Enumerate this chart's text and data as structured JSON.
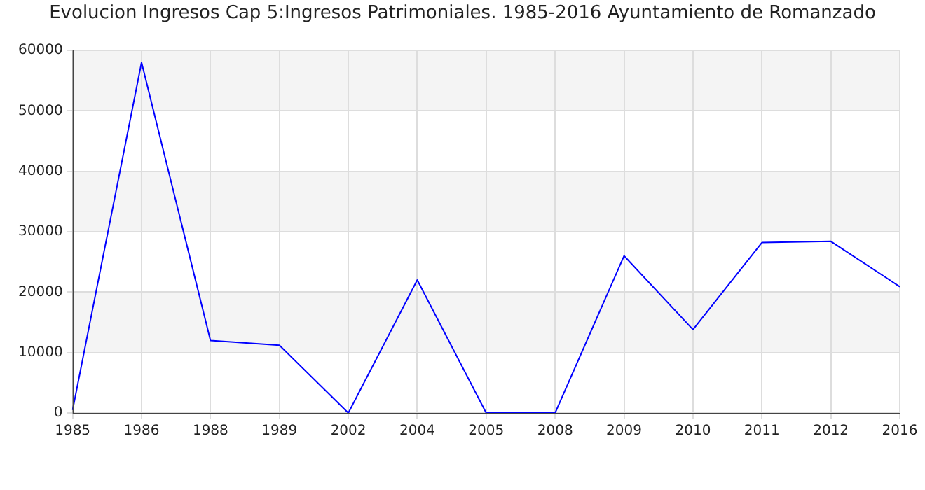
{
  "chart_data": {
    "type": "line",
    "title": "Evolucion Ingresos Cap 5:Ingresos Patrimoniales. 1985-2016 Ayuntamiento de Romanzado",
    "categories": [
      "1985",
      "1986",
      "1988",
      "1989",
      "2002",
      "2004",
      "2005",
      "2008",
      "2009",
      "2010",
      "2011",
      "2012",
      "2016"
    ],
    "series": [
      {
        "color": "#0000ff",
        "values": [
          500,
          58000,
          12000,
          11200,
          0,
          22000,
          0,
          0,
          26000,
          13800,
          28200,
          28400,
          20900
        ]
      }
    ],
    "ylim": [
      0,
      60000
    ],
    "yticks": [
      0,
      10000,
      20000,
      30000,
      40000,
      50000,
      60000
    ],
    "grid": true,
    "legend": false,
    "marker": "none",
    "line_style": "solid"
  }
}
